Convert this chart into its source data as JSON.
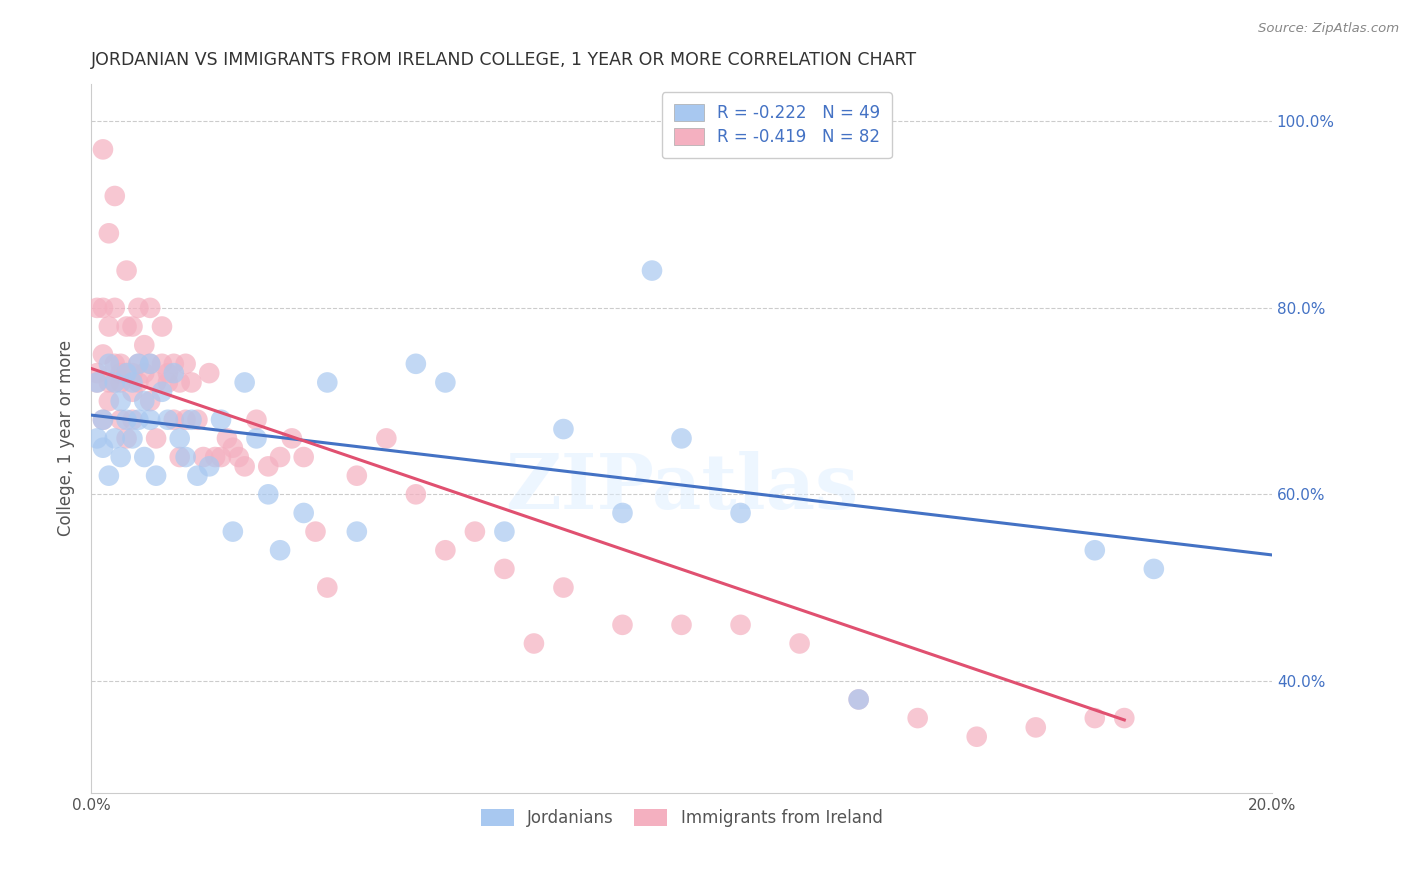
{
  "title": "JORDANIAN VS IMMIGRANTS FROM IRELAND COLLEGE, 1 YEAR OR MORE CORRELATION CHART",
  "source": "Source: ZipAtlas.com",
  "ylabel": "College, 1 year or more",
  "xlim": [
    0.0,
    0.2
  ],
  "ylim": [
    0.28,
    1.04
  ],
  "xticks": [
    0.0,
    0.04,
    0.08,
    0.12,
    0.16,
    0.2
  ],
  "yticks": [
    0.4,
    0.6,
    0.8,
    1.0
  ],
  "ytick_labels": [
    "40.0%",
    "60.0%",
    "80.0%",
    "100.0%"
  ],
  "xtick_labels": [
    "0.0%",
    "",
    "",
    "",
    "",
    "20.0%"
  ],
  "blue_R": -0.222,
  "blue_N": 49,
  "pink_R": -0.419,
  "pink_N": 82,
  "blue_color": "#A8C8F0",
  "pink_color": "#F4B0C0",
  "blue_line_color": "#4472C4",
  "pink_line_color": "#E05070",
  "blue_scatter_x": [
    0.001,
    0.001,
    0.002,
    0.002,
    0.003,
    0.003,
    0.004,
    0.004,
    0.005,
    0.005,
    0.006,
    0.006,
    0.007,
    0.007,
    0.008,
    0.008,
    0.009,
    0.009,
    0.01,
    0.01,
    0.011,
    0.012,
    0.013,
    0.014,
    0.015,
    0.016,
    0.017,
    0.018,
    0.02,
    0.022,
    0.024,
    0.026,
    0.028,
    0.03,
    0.032,
    0.036,
    0.04,
    0.045,
    0.055,
    0.06,
    0.07,
    0.08,
    0.09,
    0.095,
    0.1,
    0.11,
    0.13,
    0.17,
    0.18
  ],
  "blue_scatter_y": [
    0.66,
    0.72,
    0.65,
    0.68,
    0.74,
    0.62,
    0.72,
    0.66,
    0.7,
    0.64,
    0.68,
    0.73,
    0.72,
    0.66,
    0.74,
    0.68,
    0.64,
    0.7,
    0.68,
    0.74,
    0.62,
    0.71,
    0.68,
    0.73,
    0.66,
    0.64,
    0.68,
    0.62,
    0.63,
    0.68,
    0.56,
    0.72,
    0.66,
    0.6,
    0.54,
    0.58,
    0.72,
    0.56,
    0.74,
    0.72,
    0.56,
    0.67,
    0.58,
    0.84,
    0.66,
    0.58,
    0.38,
    0.54,
    0.52
  ],
  "pink_scatter_x": [
    0.001,
    0.001,
    0.001,
    0.002,
    0.002,
    0.002,
    0.003,
    0.003,
    0.003,
    0.004,
    0.004,
    0.004,
    0.005,
    0.005,
    0.005,
    0.006,
    0.006,
    0.006,
    0.007,
    0.007,
    0.007,
    0.008,
    0.008,
    0.008,
    0.009,
    0.009,
    0.01,
    0.01,
    0.01,
    0.011,
    0.011,
    0.012,
    0.012,
    0.013,
    0.013,
    0.014,
    0.014,
    0.015,
    0.015,
    0.016,
    0.016,
    0.017,
    0.018,
    0.019,
    0.02,
    0.021,
    0.022,
    0.023,
    0.024,
    0.025,
    0.026,
    0.028,
    0.03,
    0.032,
    0.034,
    0.036,
    0.038,
    0.04,
    0.045,
    0.05,
    0.055,
    0.06,
    0.065,
    0.07,
    0.075,
    0.08,
    0.09,
    0.1,
    0.11,
    0.12,
    0.13,
    0.14,
    0.15,
    0.16,
    0.17,
    0.175,
    0.002,
    0.003,
    0.004,
    0.005,
    0.006,
    0.007
  ],
  "pink_scatter_y": [
    0.73,
    0.8,
    0.72,
    0.75,
    0.97,
    0.8,
    0.72,
    0.88,
    0.78,
    0.74,
    0.92,
    0.8,
    0.74,
    0.72,
    0.68,
    0.73,
    0.78,
    0.84,
    0.73,
    0.78,
    0.68,
    0.74,
    0.8,
    0.72,
    0.73,
    0.76,
    0.7,
    0.74,
    0.8,
    0.72,
    0.66,
    0.74,
    0.78,
    0.73,
    0.72,
    0.74,
    0.68,
    0.72,
    0.64,
    0.74,
    0.68,
    0.72,
    0.68,
    0.64,
    0.73,
    0.64,
    0.64,
    0.66,
    0.65,
    0.64,
    0.63,
    0.68,
    0.63,
    0.64,
    0.66,
    0.64,
    0.56,
    0.5,
    0.62,
    0.66,
    0.6,
    0.54,
    0.56,
    0.52,
    0.44,
    0.5,
    0.46,
    0.46,
    0.46,
    0.44,
    0.38,
    0.36,
    0.34,
    0.35,
    0.36,
    0.36,
    0.68,
    0.7,
    0.72,
    0.73,
    0.66,
    0.71
  ],
  "blue_trend_x": [
    0.0,
    0.2
  ],
  "blue_trend_y": [
    0.685,
    0.535
  ],
  "pink_trend_x": [
    0.0,
    0.175
  ],
  "pink_trend_y": [
    0.735,
    0.358
  ],
  "watermark": "ZIPatlas",
  "title_color": "#333333",
  "axis_label_color": "#555555",
  "tick_color": "#555555",
  "grid_color": "#CCCCCC",
  "right_ytick_color": "#4472C4",
  "marker_size": 220,
  "legend_text_color": "#4472C4"
}
